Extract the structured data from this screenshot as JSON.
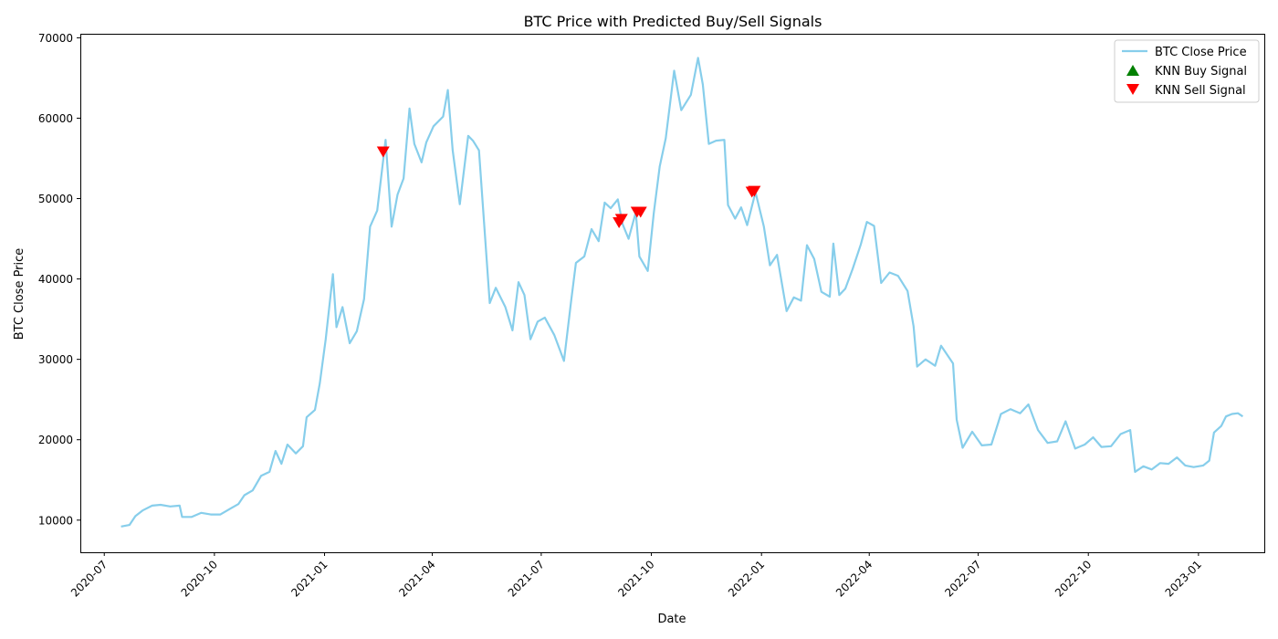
{
  "chart_data": {
    "type": "line",
    "title": "BTC Price with Predicted Buy/Sell Signals",
    "xlabel": "Date",
    "ylabel": "BTC Close Price",
    "xlim": [
      "2020-06-11",
      "2023-02-25"
    ],
    "ylim": [
      6000,
      70500
    ],
    "x_ticks": [
      "2020-07",
      "2020-10",
      "2021-01",
      "2021-04",
      "2021-07",
      "2021-10",
      "2022-01",
      "2022-04",
      "2022-07",
      "2022-10",
      "2023-01"
    ],
    "y_ticks": [
      10000,
      20000,
      30000,
      40000,
      50000,
      60000,
      70000
    ],
    "grid": false,
    "legend_position": "top-right",
    "series": [
      {
        "name": "BTC Close Price",
        "color": "#87ceeb",
        "points": [
          [
            "2020-07-15",
            9200
          ],
          [
            "2020-07-22",
            9400
          ],
          [
            "2020-07-27",
            10500
          ],
          [
            "2020-08-02",
            11200
          ],
          [
            "2020-08-10",
            11800
          ],
          [
            "2020-08-17",
            11900
          ],
          [
            "2020-08-25",
            11700
          ],
          [
            "2020-09-02",
            11800
          ],
          [
            "2020-09-04",
            10400
          ],
          [
            "2020-09-12",
            10400
          ],
          [
            "2020-09-20",
            10900
          ],
          [
            "2020-09-28",
            10700
          ],
          [
            "2020-10-06",
            10700
          ],
          [
            "2020-10-14",
            11400
          ],
          [
            "2020-10-21",
            12000
          ],
          [
            "2020-10-26",
            13100
          ],
          [
            "2020-11-02",
            13700
          ],
          [
            "2020-11-09",
            15500
          ],
          [
            "2020-11-16",
            16000
          ],
          [
            "2020-11-21",
            18600
          ],
          [
            "2020-11-26",
            17000
          ],
          [
            "2020-12-01",
            19400
          ],
          [
            "2020-12-08",
            18300
          ],
          [
            "2020-12-14",
            19200
          ],
          [
            "2020-12-17",
            22800
          ],
          [
            "2020-12-24",
            23700
          ],
          [
            "2020-12-28",
            27000
          ],
          [
            "2021-01-02",
            32500
          ],
          [
            "2021-01-08",
            40600
          ],
          [
            "2021-01-11",
            34000
          ],
          [
            "2021-01-16",
            36500
          ],
          [
            "2021-01-22",
            32000
          ],
          [
            "2021-01-28",
            33500
          ],
          [
            "2021-02-03",
            37500
          ],
          [
            "2021-02-08",
            46500
          ],
          [
            "2021-02-14",
            48500
          ],
          [
            "2021-02-21",
            57300
          ],
          [
            "2021-02-26",
            46500
          ],
          [
            "2021-03-03",
            50500
          ],
          [
            "2021-03-08",
            52500
          ],
          [
            "2021-03-13",
            61200
          ],
          [
            "2021-03-17",
            56800
          ],
          [
            "2021-03-23",
            54500
          ],
          [
            "2021-03-27",
            57000
          ],
          [
            "2021-04-02",
            59000
          ],
          [
            "2021-04-10",
            60200
          ],
          [
            "2021-04-14",
            63500
          ],
          [
            "2021-04-18",
            56000
          ],
          [
            "2021-04-24",
            49300
          ],
          [
            "2021-05-01",
            57800
          ],
          [
            "2021-05-05",
            57200
          ],
          [
            "2021-05-10",
            56000
          ],
          [
            "2021-05-13",
            49700
          ],
          [
            "2021-05-19",
            37000
          ],
          [
            "2021-05-24",
            38900
          ],
          [
            "2021-06-01",
            36500
          ],
          [
            "2021-06-07",
            33600
          ],
          [
            "2021-06-12",
            39600
          ],
          [
            "2021-06-17",
            38000
          ],
          [
            "2021-06-22",
            32500
          ],
          [
            "2021-06-28",
            34700
          ],
          [
            "2021-07-04",
            35200
          ],
          [
            "2021-07-12",
            33000
          ],
          [
            "2021-07-20",
            29800
          ],
          [
            "2021-07-26",
            37300
          ],
          [
            "2021-07-30",
            42000
          ],
          [
            "2021-08-06",
            42800
          ],
          [
            "2021-08-12",
            46200
          ],
          [
            "2021-08-18",
            44700
          ],
          [
            "2021-08-23",
            49500
          ],
          [
            "2021-08-28",
            48800
          ],
          [
            "2021-09-03",
            49900
          ],
          [
            "2021-09-07",
            46800
          ],
          [
            "2021-09-12",
            45000
          ],
          [
            "2021-09-18",
            48300
          ],
          [
            "2021-09-21",
            42800
          ],
          [
            "2021-09-28",
            41000
          ],
          [
            "2021-10-03",
            48200
          ],
          [
            "2021-10-08",
            54000
          ],
          [
            "2021-10-13",
            57500
          ],
          [
            "2021-10-20",
            65900
          ],
          [
            "2021-10-26",
            61000
          ],
          [
            "2021-11-03",
            62900
          ],
          [
            "2021-11-09",
            67500
          ],
          [
            "2021-11-13",
            64200
          ],
          [
            "2021-11-18",
            56800
          ],
          [
            "2021-11-24",
            57200
          ],
          [
            "2021-12-01",
            57300
          ],
          [
            "2021-12-04",
            49200
          ],
          [
            "2021-12-10",
            47500
          ],
          [
            "2021-12-15",
            48900
          ],
          [
            "2021-12-20",
            46700
          ],
          [
            "2021-12-27",
            50800
          ],
          [
            "2022-01-03",
            46500
          ],
          [
            "2022-01-08",
            41700
          ],
          [
            "2022-01-14",
            43000
          ],
          [
            "2022-01-22",
            36000
          ],
          [
            "2022-01-28",
            37700
          ],
          [
            "2022-02-03",
            37300
          ],
          [
            "2022-02-08",
            44200
          ],
          [
            "2022-02-14",
            42500
          ],
          [
            "2022-02-20",
            38400
          ],
          [
            "2022-02-27",
            37800
          ],
          [
            "2022-03-02",
            44400
          ],
          [
            "2022-03-07",
            38000
          ],
          [
            "2022-03-12",
            38800
          ],
          [
            "2022-03-18",
            41200
          ],
          [
            "2022-03-25",
            44300
          ],
          [
            "2022-03-30",
            47100
          ],
          [
            "2022-04-05",
            46600
          ],
          [
            "2022-04-11",
            39500
          ],
          [
            "2022-04-18",
            40800
          ],
          [
            "2022-04-25",
            40400
          ],
          [
            "2022-05-03",
            38500
          ],
          [
            "2022-05-08",
            34100
          ],
          [
            "2022-05-11",
            29100
          ],
          [
            "2022-05-18",
            30000
          ],
          [
            "2022-05-26",
            29200
          ],
          [
            "2022-05-31",
            31700
          ],
          [
            "2022-06-10",
            29500
          ],
          [
            "2022-06-13",
            22500
          ],
          [
            "2022-06-18",
            19000
          ],
          [
            "2022-06-26",
            21000
          ],
          [
            "2022-07-04",
            19300
          ],
          [
            "2022-07-12",
            19400
          ],
          [
            "2022-07-20",
            23200
          ],
          [
            "2022-07-28",
            23800
          ],
          [
            "2022-08-05",
            23300
          ],
          [
            "2022-08-12",
            24400
          ],
          [
            "2022-08-20",
            21200
          ],
          [
            "2022-08-28",
            19600
          ],
          [
            "2022-09-05",
            19800
          ],
          [
            "2022-09-12",
            22300
          ],
          [
            "2022-09-20",
            18900
          ],
          [
            "2022-09-28",
            19400
          ],
          [
            "2022-10-05",
            20300
          ],
          [
            "2022-10-12",
            19100
          ],
          [
            "2022-10-20",
            19200
          ],
          [
            "2022-10-28",
            20700
          ],
          [
            "2022-11-05",
            21200
          ],
          [
            "2022-11-09",
            16000
          ],
          [
            "2022-11-16",
            16700
          ],
          [
            "2022-11-23",
            16300
          ],
          [
            "2022-11-30",
            17100
          ],
          [
            "2022-12-07",
            17000
          ],
          [
            "2022-12-14",
            17800
          ],
          [
            "2022-12-21",
            16800
          ],
          [
            "2022-12-28",
            16600
          ],
          [
            "2023-01-05",
            16800
          ],
          [
            "2023-01-10",
            17400
          ],
          [
            "2023-01-14",
            20900
          ],
          [
            "2023-01-20",
            21700
          ],
          [
            "2023-01-24",
            22900
          ],
          [
            "2023-01-29",
            23200
          ],
          [
            "2023-02-03",
            23300
          ],
          [
            "2023-02-07",
            22900
          ]
        ]
      },
      {
        "name": "KNN Buy Signal",
        "color": "#008000",
        "marker": "triangle-up",
        "points": []
      },
      {
        "name": "KNN Sell Signal",
        "color": "#ff0000",
        "marker": "triangle-down",
        "points": [
          [
            "2021-02-19",
            55800
          ],
          [
            "2021-09-04",
            47000
          ],
          [
            "2021-09-06",
            47400
          ],
          [
            "2021-09-19",
            48300
          ],
          [
            "2021-09-22",
            48300
          ],
          [
            "2021-12-24",
            50800
          ],
          [
            "2021-12-26",
            50900
          ]
        ]
      }
    ]
  }
}
